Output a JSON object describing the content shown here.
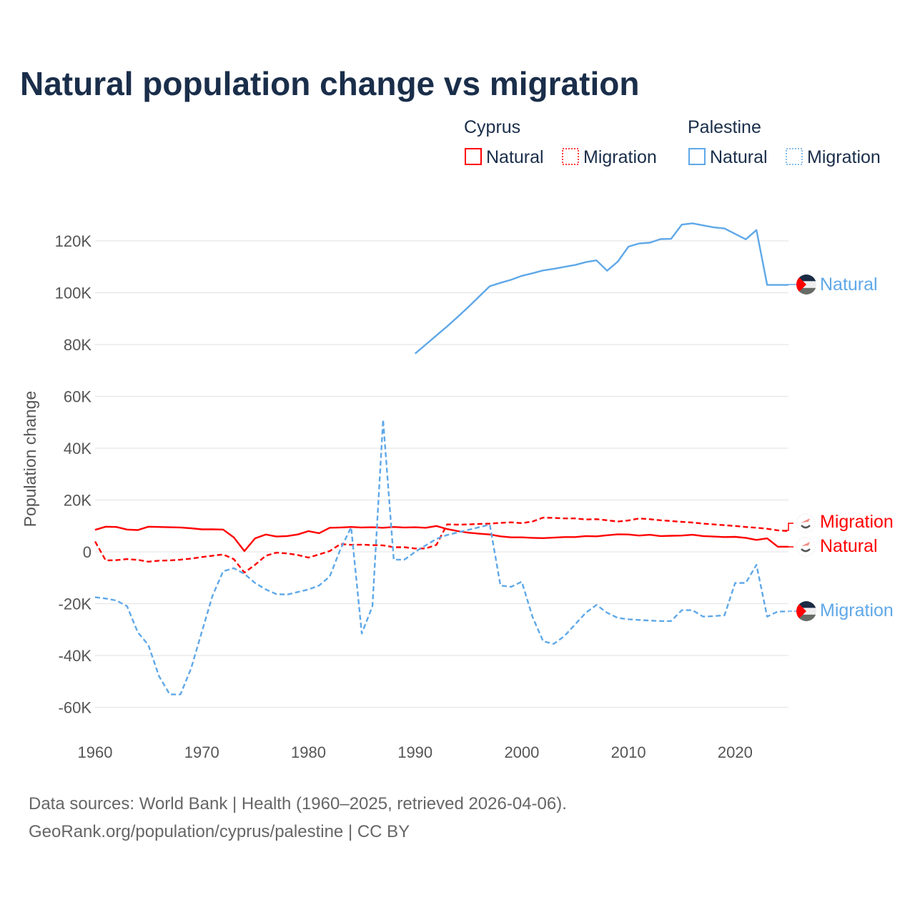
{
  "title": "Natural population change vs migration",
  "legend": {
    "groups": [
      {
        "country": "Cyprus",
        "items": [
          {
            "label": "Natural",
            "style": "solid"
          },
          {
            "label": "Migration",
            "style": "dotted"
          }
        ],
        "color": "#ff0000"
      },
      {
        "country": "Palestine",
        "items": [
          {
            "label": "Natural",
            "style": "solid"
          },
          {
            "label": "Migration",
            "style": "dotted"
          }
        ],
        "color": "#5fa8e8"
      }
    ]
  },
  "end_labels": {
    "palestine_natural": "Natural",
    "cyprus_migration": "Migration",
    "cyprus_natural": "Natural",
    "palestine_migration": "Migration"
  },
  "sources": {
    "line1": "Data sources: World Bank | Health (1960–2025, retrieved 2026-04-06).",
    "line2": "GeoRank.org/population/cyprus/palestine | CC BY"
  },
  "chart_data": {
    "type": "line",
    "title": "Natural population change vs migration",
    "xlabel": "",
    "ylabel": "Population change",
    "xlim": [
      1960,
      2025
    ],
    "ylim": [
      -68000,
      132000
    ],
    "grid": true,
    "legend_position": "top-right",
    "x_ticks": [
      1960,
      1970,
      1980,
      1990,
      2000,
      2010,
      2020
    ],
    "x_tick_labels": [
      "1960",
      "1970",
      "1980",
      "1990",
      "2000",
      "2010",
      "2020"
    ],
    "y_ticks": [
      -60000,
      -40000,
      -20000,
      0,
      20000,
      40000,
      60000,
      80000,
      100000,
      120000
    ],
    "y_tick_labels": [
      "-60K",
      "-40K",
      "-20K",
      "0",
      "20K",
      "40K",
      "60K",
      "80K",
      "100K",
      "120K"
    ],
    "series": [
      {
        "name": "Cyprus Natural",
        "color": "#ff0000",
        "dash": "solid",
        "start_year": 1960,
        "values": [
          8500,
          9700,
          9600,
          8600,
          8400,
          9700,
          9600,
          9500,
          9400,
          9100,
          8700,
          8700,
          8600,
          5600,
          300,
          5200,
          6700,
          5900,
          6100,
          6700,
          8000,
          7200,
          9300,
          9400,
          9600,
          9400,
          9500,
          9300,
          9600,
          9400,
          9500,
          9300,
          10000,
          8800,
          8000,
          7400,
          7000,
          6700,
          6000,
          5600,
          5600,
          5400,
          5300,
          5500,
          5700,
          5700,
          6100,
          6000,
          6400,
          6800,
          6700,
          6300,
          6600,
          6100,
          6200,
          6300,
          6600,
          6100,
          5900,
          5700,
          5800,
          5400,
          4600,
          5200,
          2000,
          2000
        ]
      },
      {
        "name": "Cyprus Migration",
        "color": "#ff0000",
        "dash": "dashed",
        "start_year": 1960,
        "values": [
          4000,
          -3300,
          -3200,
          -2800,
          -3100,
          -3800,
          -3400,
          -3300,
          -3000,
          -2600,
          -2000,
          -1500,
          -1000,
          -2800,
          -8000,
          -5000,
          -1500,
          -300,
          -600,
          -1200,
          -2200,
          -1000,
          300,
          3000,
          2700,
          2800,
          2600,
          2500,
          1800,
          1800,
          1300,
          1300,
          2700,
          10600,
          10500,
          10600,
          10800,
          10900,
          11200,
          11400,
          11100,
          11700,
          13200,
          13100,
          12900,
          12900,
          12500,
          12600,
          12200,
          11700,
          12100,
          12900,
          12600,
          12200,
          11900,
          11600,
          11300,
          10900,
          10600,
          10300,
          10000,
          9600,
          9300,
          8900,
          8300,
          8000
        ]
      },
      {
        "name": "Palestine Natural",
        "color": "#5fa8e8",
        "dash": "solid",
        "start_year": 1990,
        "values": [
          76500,
          80000,
          83500,
          87000,
          90700,
          94500,
          98500,
          102500,
          103800,
          105000,
          106500,
          107500,
          108600,
          109200,
          110000,
          110700,
          111800,
          112500,
          108500,
          112000,
          117800,
          119000,
          119300,
          120700,
          120800,
          126300,
          126800,
          126000,
          125200,
          124800,
          122700,
          120600,
          124200,
          103000,
          103000,
          103000
        ]
      },
      {
        "name": "Palestine Migration",
        "color": "#5fa8e8",
        "dash": "dashed",
        "start_year": 1960,
        "values": [
          -17500,
          -18000,
          -18800,
          -21000,
          -31000,
          -36000,
          -48000,
          -55000,
          -55000,
          -45000,
          -31000,
          -17000,
          -7500,
          -6300,
          -8500,
          -12000,
          -14500,
          -16300,
          -16500,
          -15500,
          -14500,
          -13000,
          -9500,
          1000,
          9500,
          -31500,
          -21000,
          51000,
          -3000,
          -3000,
          0,
          2500,
          5000,
          6500,
          7500,
          8500,
          9500,
          10500,
          -13000,
          -13500,
          -11500,
          -25000,
          -34500,
          -35500,
          -32500,
          -28000,
          -23500,
          -20500,
          -23500,
          -25500,
          -26000,
          -26300,
          -26500,
          -26700,
          -26700,
          -22500,
          -22500,
          -25000,
          -24800,
          -24500,
          -12000,
          -12000,
          -5000,
          -25000,
          -23000,
          -23000
        ]
      }
    ]
  }
}
